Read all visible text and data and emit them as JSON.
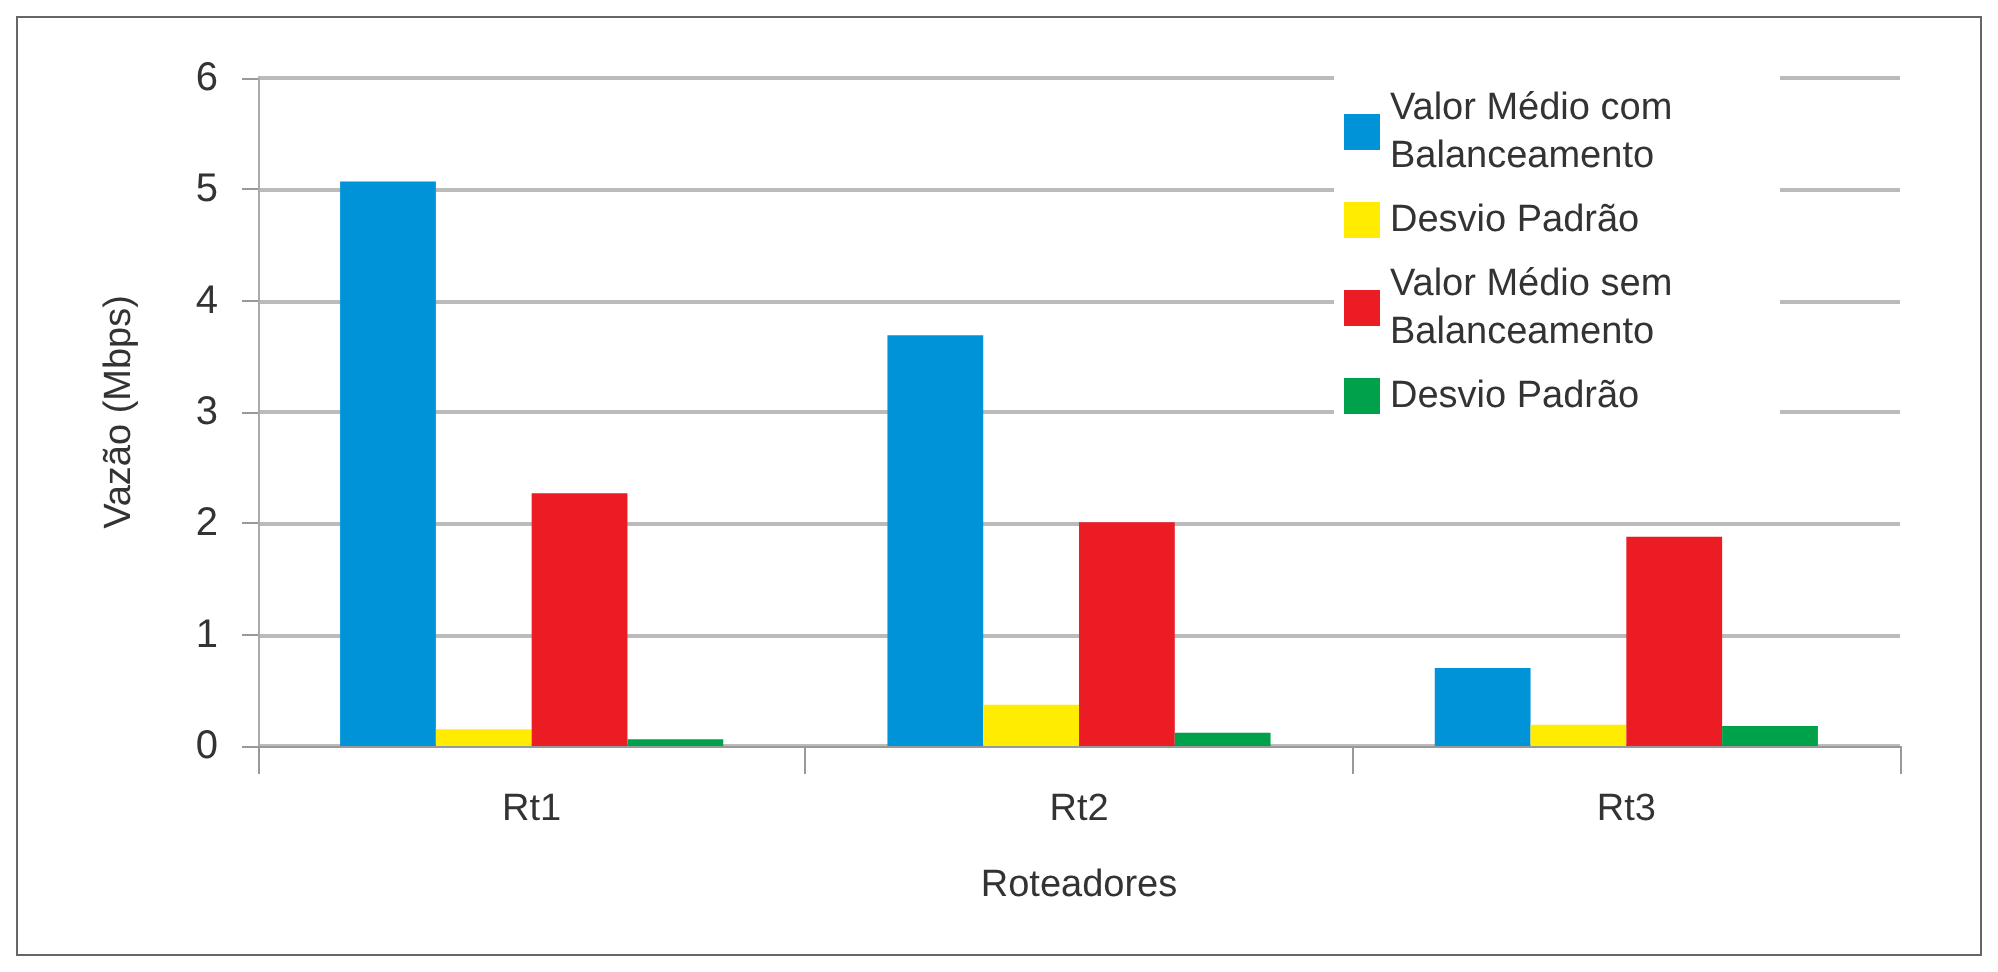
{
  "chart_data": {
    "type": "bar",
    "xlabel": "Roteadores",
    "ylabel": "Vazão (Mbps)",
    "categories": [
      "Rt1",
      "Rt2",
      "Rt3"
    ],
    "series": [
      {
        "name": "Valor Médio com Balanceamento",
        "color": "#0093d8",
        "values": [
          5.07,
          3.69,
          0.7
        ]
      },
      {
        "name": "Desvio Padrão",
        "color": "#ffec00",
        "values": [
          0.15,
          0.37,
          0.19
        ]
      },
      {
        "name": "Valor Médio sem Balanceamento",
        "color": "#ec1c24",
        "values": [
          2.27,
          2.01,
          1.88
        ]
      },
      {
        "name": "Desvio Padrão",
        "color": "#00a14b",
        "values": [
          0.06,
          0.12,
          0.18
        ]
      }
    ],
    "ylim": [
      0,
      6
    ],
    "yticks": [
      0,
      1,
      2,
      3,
      4,
      5,
      6
    ],
    "grid": "y",
    "legend": "top right"
  }
}
